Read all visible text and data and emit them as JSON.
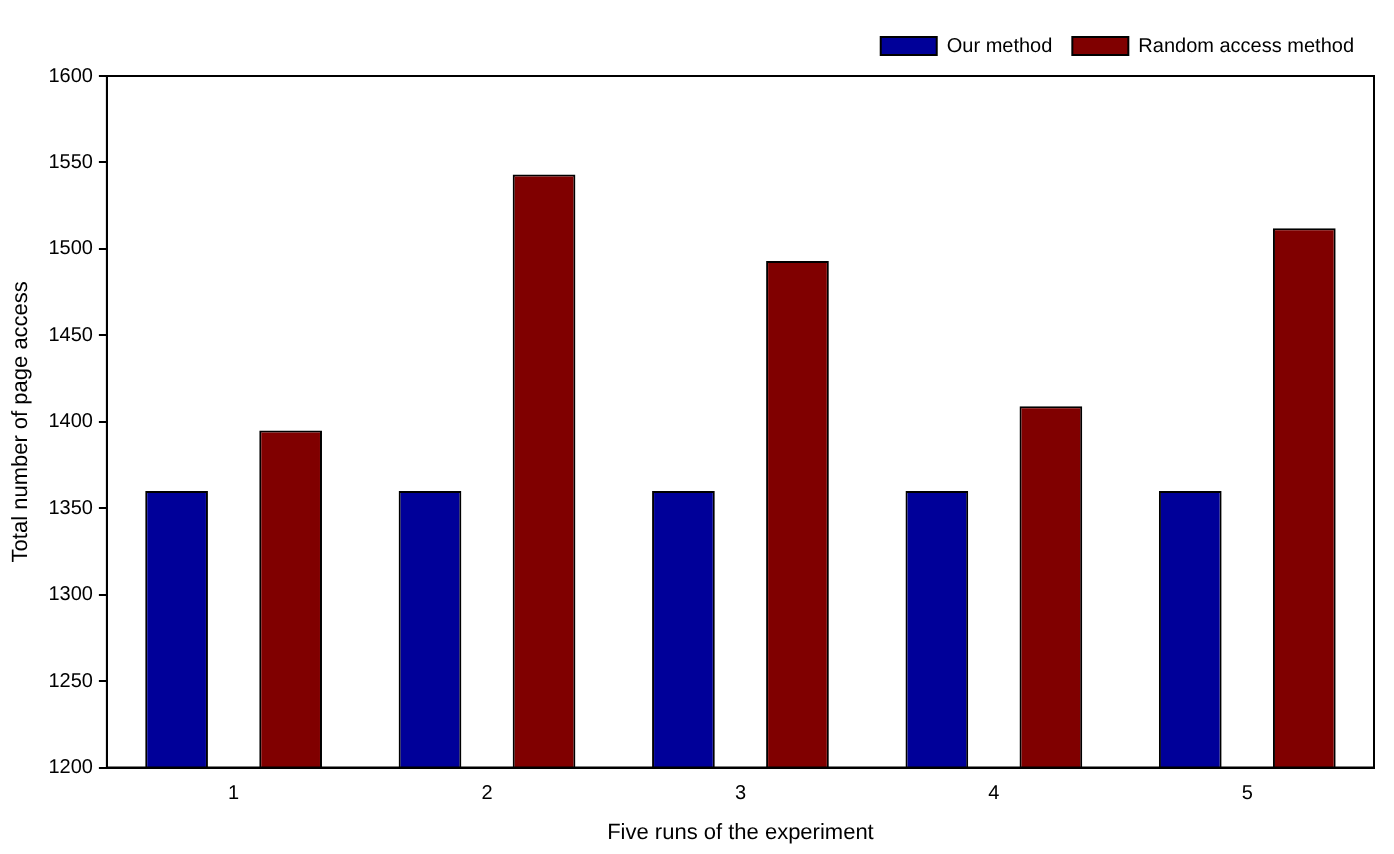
{
  "chart_data": {
    "type": "bar",
    "xlabel": "Five runs of the experiment",
    "ylabel": "Total number of page access",
    "categories": [
      "1",
      "2",
      "3",
      "4",
      "5"
    ],
    "series": [
      {
        "name": "Our method",
        "color": "#000099",
        "values": [
          1360,
          1360,
          1360,
          1360,
          1360
        ]
      },
      {
        "name": "Random access method",
        "color": "#800000",
        "values": [
          1395,
          1543,
          1493,
          1409,
          1512
        ]
      }
    ],
    "ylim": [
      1200,
      1600
    ],
    "yticks": [
      1200,
      1250,
      1300,
      1350,
      1400,
      1450,
      1500,
      1550,
      1600
    ],
    "grid": false,
    "legend": "top right"
  }
}
